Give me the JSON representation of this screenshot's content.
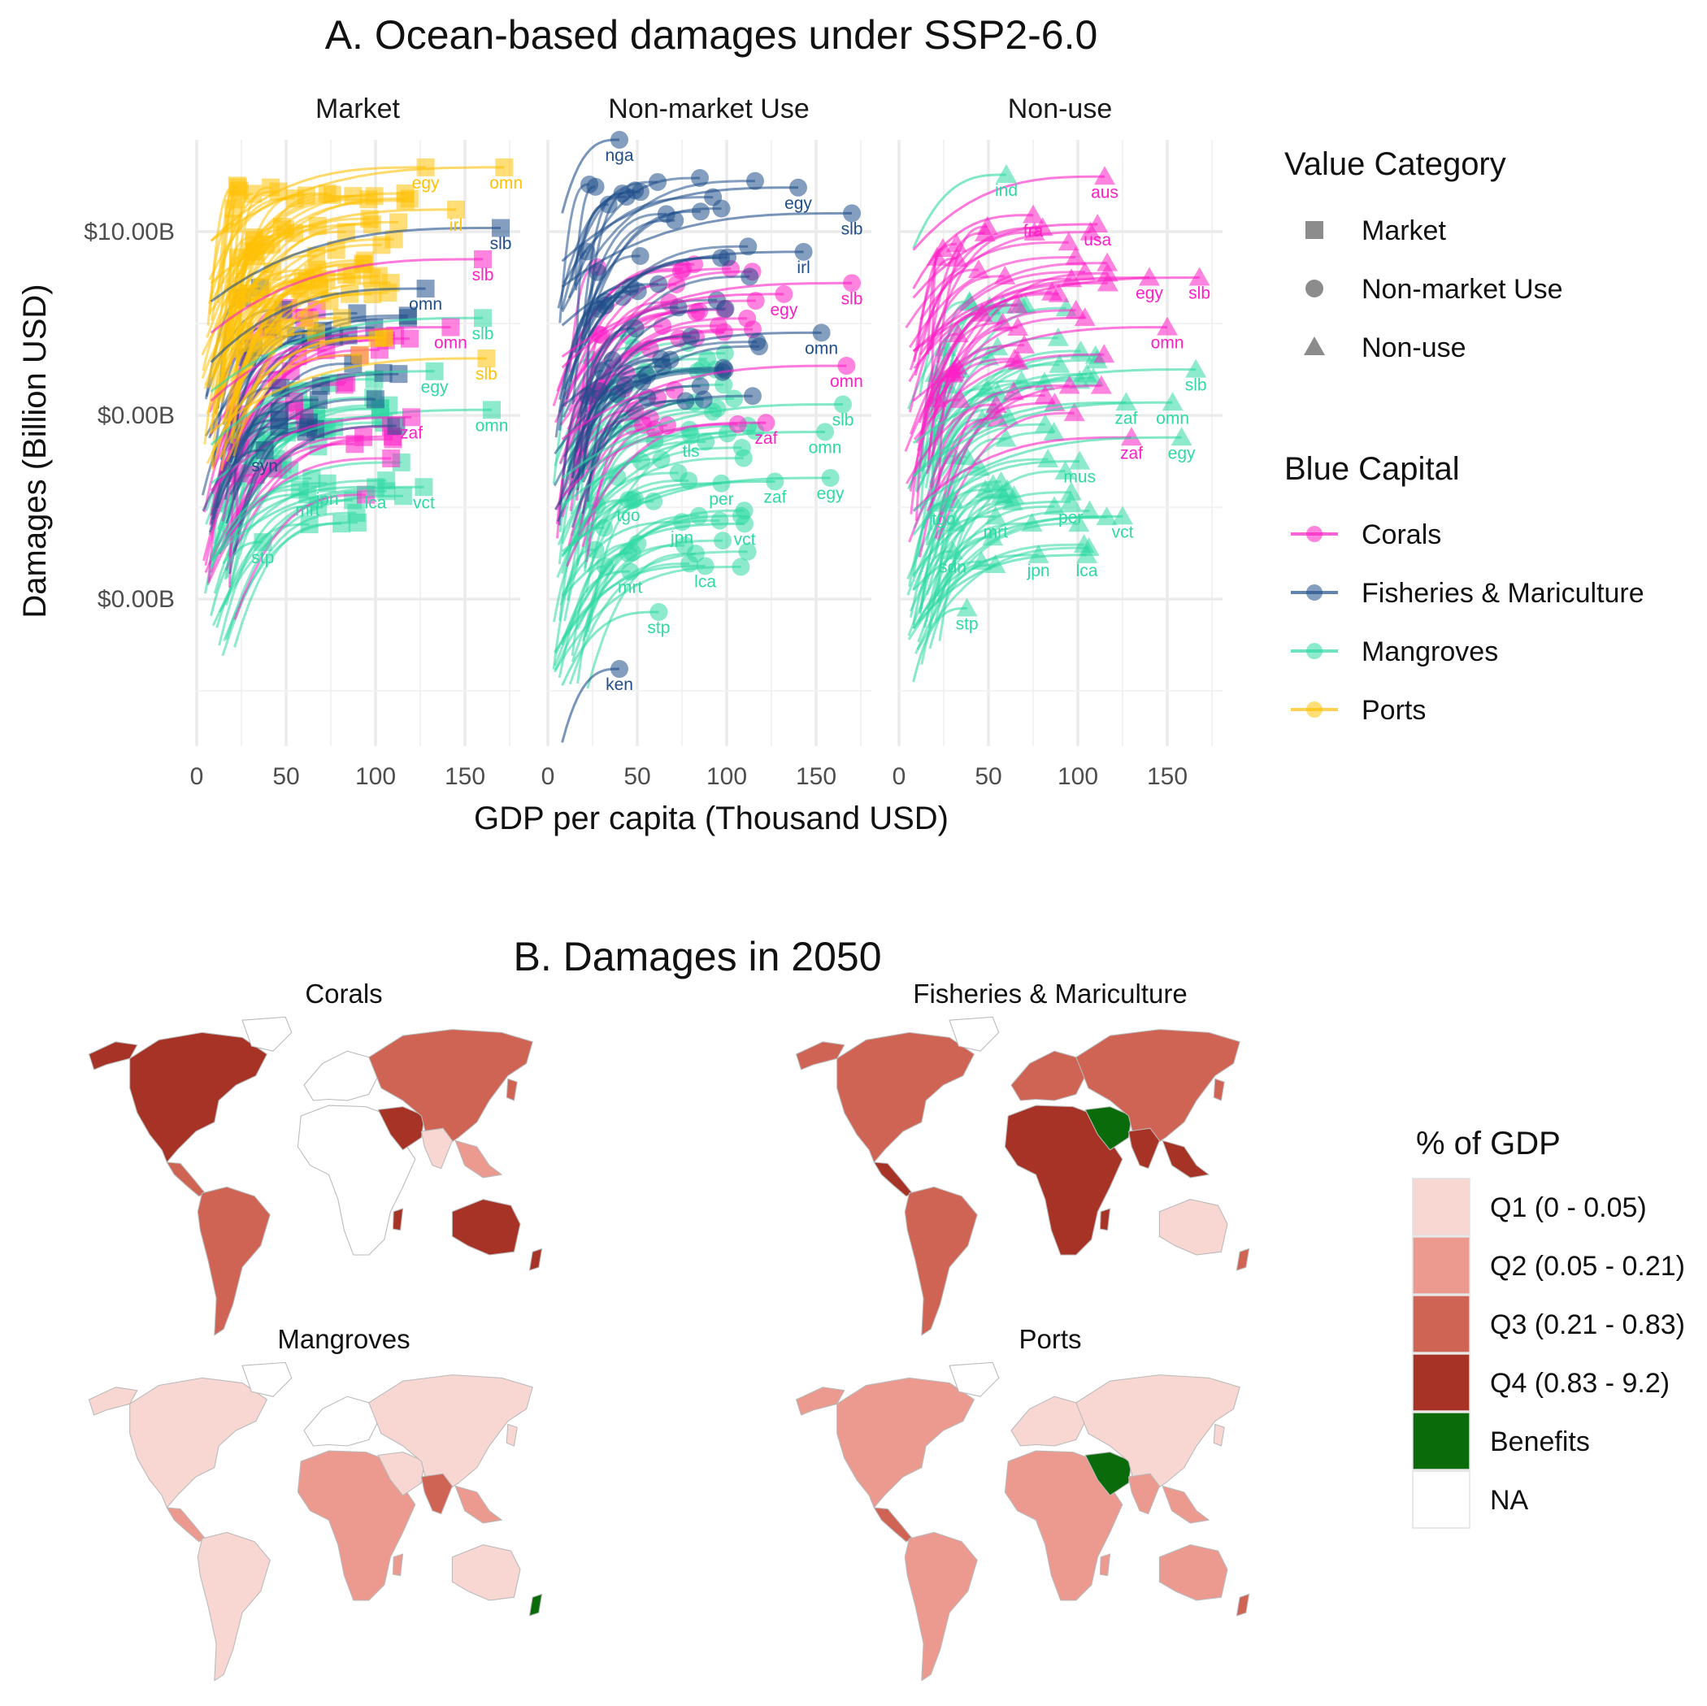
{
  "figure": {
    "panel_a_title": "A. Ocean-based damages under SSP2-6.0",
    "panel_b_title": "B. Damages in 2050",
    "xlabel": "GDP per capita (Thousand USD)",
    "ylabel": "Damages (Billion USD)"
  },
  "colors": {
    "Corals": "#ff1fc7",
    "Fisheries & Mariculture": "#1f4e8a",
    "Mangroves": "#2fd9a4",
    "Ports": "#ffc107",
    "grid": "#ebebeb",
    "q1": "#f8d7d3",
    "q2": "#ec9a8f",
    "q3": "#cf6455",
    "q4": "#a63325",
    "benefits": "#0a6b0a",
    "na": "#ffffff"
  },
  "chart_data": [
    {
      "type": "line",
      "title": "A. Ocean-based damages under SSP2-6.0",
      "xlabel": "GDP per capita (Thousand USD)",
      "ylabel": "Damages (Billion USD)",
      "x_ticks": [
        "0",
        "50",
        "100",
        "150"
      ],
      "xlim": [
        0,
        180
      ],
      "y_ticks": [
        "$0.00B",
        "$0.00B",
        "$10.00B"
      ],
      "y_tick_levels": [
        -1.0,
        0.0,
        1.0
      ],
      "ylim": [
        -1.8,
        1.5
      ],
      "y_scale": "pseudo-log (levels estimated)",
      "grid": true,
      "facets": [
        "Market",
        "Non-market Use",
        "Non-use"
      ],
      "value_category_shapes": {
        "Market": "square",
        "Non-market Use": "circle",
        "Non-use": "triangle"
      },
      "legend_value_category_title": "Value Category",
      "legend_value_category": [
        "Market",
        "Non-market Use",
        "Non-use"
      ],
      "legend_blue_capital_title": "Blue Capital",
      "legend_blue_capital": [
        "Corals",
        "Fisheries & Mariculture",
        "Mangroves",
        "Ports"
      ],
      "legend_placement": "right",
      "labeled_series": [
        {
          "facet": "Market",
          "capital": "Ports",
          "label": "egy",
          "x": 128,
          "y": 1.27
        },
        {
          "facet": "Market",
          "capital": "Ports",
          "label": "omn",
          "x": 173,
          "y": 1.27
        },
        {
          "facet": "Market",
          "capital": "Ports",
          "label": "irl",
          "x": 145,
          "y": 1.04
        },
        {
          "facet": "Market",
          "capital": "Fisheries & Mariculture",
          "label": "slb",
          "x": 170,
          "y": 0.94
        },
        {
          "facet": "Market",
          "capital": "Corals",
          "label": "slb",
          "x": 160,
          "y": 0.77
        },
        {
          "facet": "Market",
          "capital": "Fisheries & Mariculture",
          "label": "omn",
          "x": 128,
          "y": 0.61
        },
        {
          "facet": "Market",
          "capital": "Mangroves",
          "label": "slb",
          "x": 160,
          "y": 0.45
        },
        {
          "facet": "Market",
          "capital": "Corals",
          "label": "omn",
          "x": 142,
          "y": 0.4
        },
        {
          "facet": "Market",
          "capital": "Ports",
          "label": "slb",
          "x": 162,
          "y": 0.23
        },
        {
          "facet": "Market",
          "capital": "Mangroves",
          "label": "egy",
          "x": 133,
          "y": 0.16
        },
        {
          "facet": "Market",
          "capital": "Mangroves",
          "label": "omn",
          "x": 165,
          "y": -0.05
        },
        {
          "facet": "Market",
          "capital": "Corals",
          "label": "zaf",
          "x": 120,
          "y": -0.09
        },
        {
          "facet": "Market",
          "capital": "Fisheries & Mariculture",
          "label": "syn",
          "x": 38,
          "y": -0.27
        },
        {
          "facet": "Market",
          "capital": "Mangroves",
          "label": "jpn",
          "x": 73,
          "y": -0.45
        },
        {
          "facet": "Market",
          "capital": "Mangroves",
          "label": "lca",
          "x": 100,
          "y": -0.47
        },
        {
          "facet": "Market",
          "capital": "Mangroves",
          "label": "vct",
          "x": 127,
          "y": -0.47
        },
        {
          "facet": "Market",
          "capital": "Mangroves",
          "label": "mrt",
          "x": 62,
          "y": -0.51
        },
        {
          "facet": "Market",
          "capital": "Mangroves",
          "label": "stp",
          "x": 37,
          "y": -0.77
        },
        {
          "facet": "Non-market Use",
          "capital": "Fisheries & Mariculture",
          "label": "nga",
          "x": 40,
          "y": 1.42
        },
        {
          "facet": "Non-market Use",
          "capital": "Fisheries & Mariculture",
          "label": "egy",
          "x": 140,
          "y": 1.16
        },
        {
          "facet": "Non-market Use",
          "capital": "Fisheries & Mariculture",
          "label": "slb",
          "x": 170,
          "y": 1.02
        },
        {
          "facet": "Non-market Use",
          "capital": "Fisheries & Mariculture",
          "label": "irl",
          "x": 143,
          "y": 0.81
        },
        {
          "facet": "Non-market Use",
          "capital": "Corals",
          "label": "egy",
          "x": 132,
          "y": 0.58
        },
        {
          "facet": "Non-market Use",
          "capital": "Corals",
          "label": "slb",
          "x": 170,
          "y": 0.64
        },
        {
          "facet": "Non-market Use",
          "capital": "Fisheries & Mariculture",
          "label": "omn",
          "x": 153,
          "y": 0.37
        },
        {
          "facet": "Non-market Use",
          "capital": "Corals",
          "label": "omn",
          "x": 167,
          "y": 0.19
        },
        {
          "facet": "Non-market Use",
          "capital": "Mangroves",
          "label": "slb",
          "x": 165,
          "y": -0.02
        },
        {
          "facet": "Non-market Use",
          "capital": "Corals",
          "label": "zaf",
          "x": 122,
          "y": -0.12
        },
        {
          "facet": "Non-market Use",
          "capital": "Mangroves",
          "label": "omn",
          "x": 155,
          "y": -0.17
        },
        {
          "facet": "Non-market Use",
          "capital": "Mangroves",
          "label": "tls",
          "x": 80,
          "y": -0.19
        },
        {
          "facet": "Non-market Use",
          "capital": "Mangroves",
          "label": "per",
          "x": 97,
          "y": -0.45
        },
        {
          "facet": "Non-market Use",
          "capital": "Mangroves",
          "label": "zaf",
          "x": 127,
          "y": -0.44
        },
        {
          "facet": "Non-market Use",
          "capital": "Mangroves",
          "label": "egy",
          "x": 158,
          "y": -0.42
        },
        {
          "facet": "Non-market Use",
          "capital": "Mangroves",
          "label": "tgo",
          "x": 45,
          "y": -0.54
        },
        {
          "facet": "Non-market Use",
          "capital": "Mangroves",
          "label": "jpn",
          "x": 75,
          "y": -0.66
        },
        {
          "facet": "Non-market Use",
          "capital": "Mangroves",
          "label": "vct",
          "x": 110,
          "y": -0.67
        },
        {
          "facet": "Non-market Use",
          "capital": "Mangroves",
          "label": "mrt",
          "x": 46,
          "y": -0.93
        },
        {
          "facet": "Non-market Use",
          "capital": "Mangroves",
          "label": "lca",
          "x": 88,
          "y": -0.9
        },
        {
          "facet": "Non-market Use",
          "capital": "Mangroves",
          "label": "stp",
          "x": 62,
          "y": -1.15
        },
        {
          "facet": "Non-market Use",
          "capital": "Fisheries & Mariculture",
          "label": "ken",
          "x": 40,
          "y": -1.46
        },
        {
          "facet": "Non-use",
          "capital": "Mangroves",
          "label": "ind",
          "x": 60,
          "y": 1.23
        },
        {
          "facet": "Non-use",
          "capital": "Corals",
          "label": "aus",
          "x": 115,
          "y": 1.22
        },
        {
          "facet": "Non-use",
          "capital": "Corals",
          "label": "fra",
          "x": 75,
          "y": 1.01
        },
        {
          "facet": "Non-use",
          "capital": "Corals",
          "label": "usa",
          "x": 111,
          "y": 0.96
        },
        {
          "facet": "Non-use",
          "capital": "Corals",
          "label": "egy",
          "x": 140,
          "y": 0.67
        },
        {
          "facet": "Non-use",
          "capital": "Corals",
          "label": "slb",
          "x": 168,
          "y": 0.67
        },
        {
          "facet": "Non-use",
          "capital": "Corals",
          "label": "omn",
          "x": 150,
          "y": 0.4
        },
        {
          "facet": "Non-use",
          "capital": "Mangroves",
          "label": "slb",
          "x": 166,
          "y": 0.17
        },
        {
          "facet": "Non-use",
          "capital": "Mangroves",
          "label": "zaf",
          "x": 127,
          "y": -0.01
        },
        {
          "facet": "Non-use",
          "capital": "Mangroves",
          "label": "omn",
          "x": 153,
          "y": -0.01
        },
        {
          "facet": "Non-use",
          "capital": "Corals",
          "label": "zaf",
          "x": 130,
          "y": -0.2
        },
        {
          "facet": "Non-use",
          "capital": "Mangroves",
          "label": "egy",
          "x": 158,
          "y": -0.2
        },
        {
          "facet": "Non-use",
          "capital": "Mangroves",
          "label": "mus",
          "x": 101,
          "y": -0.33
        },
        {
          "facet": "Non-use",
          "capital": "Mangroves",
          "label": "per",
          "x": 96,
          "y": -0.55
        },
        {
          "facet": "Non-use",
          "capital": "Mangroves",
          "label": "vct",
          "x": 125,
          "y": -0.63
        },
        {
          "facet": "Non-use",
          "capital": "Mangroves",
          "label": "tgo",
          "x": 25,
          "y": -0.56
        },
        {
          "facet": "Non-use",
          "capital": "Mangroves",
          "label": "mrt",
          "x": 54,
          "y": -0.63
        },
        {
          "facet": "Non-use",
          "capital": "Mangroves",
          "label": "sdn",
          "x": 30,
          "y": -0.82
        },
        {
          "facet": "Non-use",
          "capital": "Mangroves",
          "label": "jpn",
          "x": 78,
          "y": -0.84
        },
        {
          "facet": "Non-use",
          "capital": "Mangroves",
          "label": "lca",
          "x": 105,
          "y": -0.84
        },
        {
          "facet": "Non-use",
          "capital": "Mangroves",
          "label": "stp",
          "x": 38,
          "y": -1.13
        }
      ]
    },
    {
      "type": "choropleth",
      "title": "B. Damages in 2050",
      "maps": [
        "Corals",
        "Fisheries & Mariculture",
        "Mangroves",
        "Ports"
      ],
      "legend_title": "% of GDP",
      "legend": [
        "Q1 (0 - 0.05)",
        "Q2 (0.05 - 0.21)",
        "Q3 (0.21 - 0.83)",
        "Q4 (0.83 - 9.2)",
        "Benefits",
        "NA"
      ],
      "legend_placement": "right"
    }
  ]
}
